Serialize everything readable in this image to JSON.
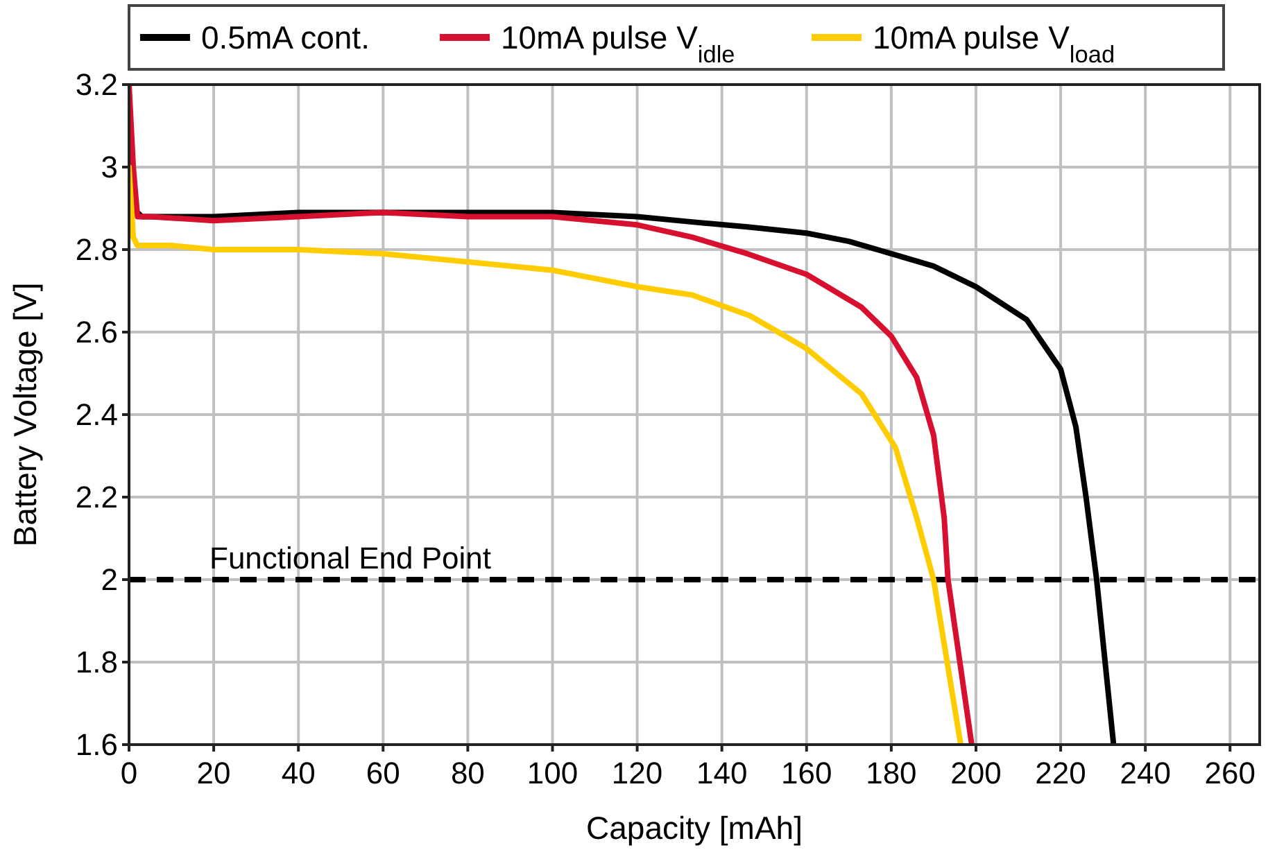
{
  "chart_data": {
    "type": "line",
    "xlabel": "Capacity [mAh]",
    "ylabel": "Battery Voltage [V]",
    "xlim": [
      0,
      267
    ],
    "ylim": [
      1.6,
      3.2
    ],
    "xticks": [
      0,
      20,
      40,
      60,
      80,
      100,
      120,
      140,
      160,
      180,
      200,
      220,
      240,
      260
    ],
    "yticks": [
      1.6,
      1.8,
      2,
      2.2,
      2.4,
      2.6,
      2.8,
      3,
      3.2
    ],
    "grid": true,
    "legend": "top",
    "line_style": "solid",
    "marker": "none",
    "ref_lines": [
      {
        "axis": "y",
        "value": 2,
        "label": "Functional End Point",
        "color": "#000000",
        "line_style": "dashed"
      }
    ],
    "series": [
      {
        "name": "0.5mA cont.",
        "color": "#000000",
        "x": [
          0,
          1,
          3,
          10,
          20,
          40,
          60,
          80,
          100,
          110,
          120,
          133,
          146,
          160,
          170,
          180,
          190,
          200,
          212,
          220,
          223.6,
          226,
          228.5,
          232.5
        ],
        "values": [
          2.93,
          2.9,
          2.88,
          2.88,
          2.88,
          2.89,
          2.89,
          2.89,
          2.89,
          2.885,
          2.88,
          2.867,
          2.855,
          2.84,
          2.82,
          2.79,
          2.76,
          2.71,
          2.63,
          2.51,
          2.37,
          2.2,
          2,
          1.6
        ]
      },
      {
        "name": "10mA pulse V$_{idle}$",
        "color": "#d8102f",
        "x": [
          0,
          1,
          2,
          5,
          20,
          40,
          60,
          80,
          100,
          120,
          133,
          146,
          160,
          173,
          180,
          186,
          190,
          192.5,
          193.4,
          199
        ],
        "values": [
          3.2,
          3.0,
          2.88,
          2.88,
          2.87,
          2.88,
          2.89,
          2.88,
          2.88,
          2.86,
          2.83,
          2.79,
          2.74,
          2.66,
          2.59,
          2.49,
          2.35,
          2.15,
          2,
          1.6
        ]
      },
      {
        "name": "10mA pulse V$_{load}$",
        "color": "#ffcc00",
        "x": [
          0,
          1,
          2,
          10,
          20,
          40,
          60,
          80,
          100,
          110,
          120,
          133,
          146.6,
          160,
          173,
          181,
          186,
          190,
          196.4
        ],
        "values": [
          3.0,
          2.83,
          2.81,
          2.81,
          2.8,
          2.8,
          2.79,
          2.77,
          2.75,
          2.73,
          2.71,
          2.69,
          2.64,
          2.56,
          2.45,
          2.32,
          2.15,
          2,
          1.6
        ]
      }
    ]
  }
}
